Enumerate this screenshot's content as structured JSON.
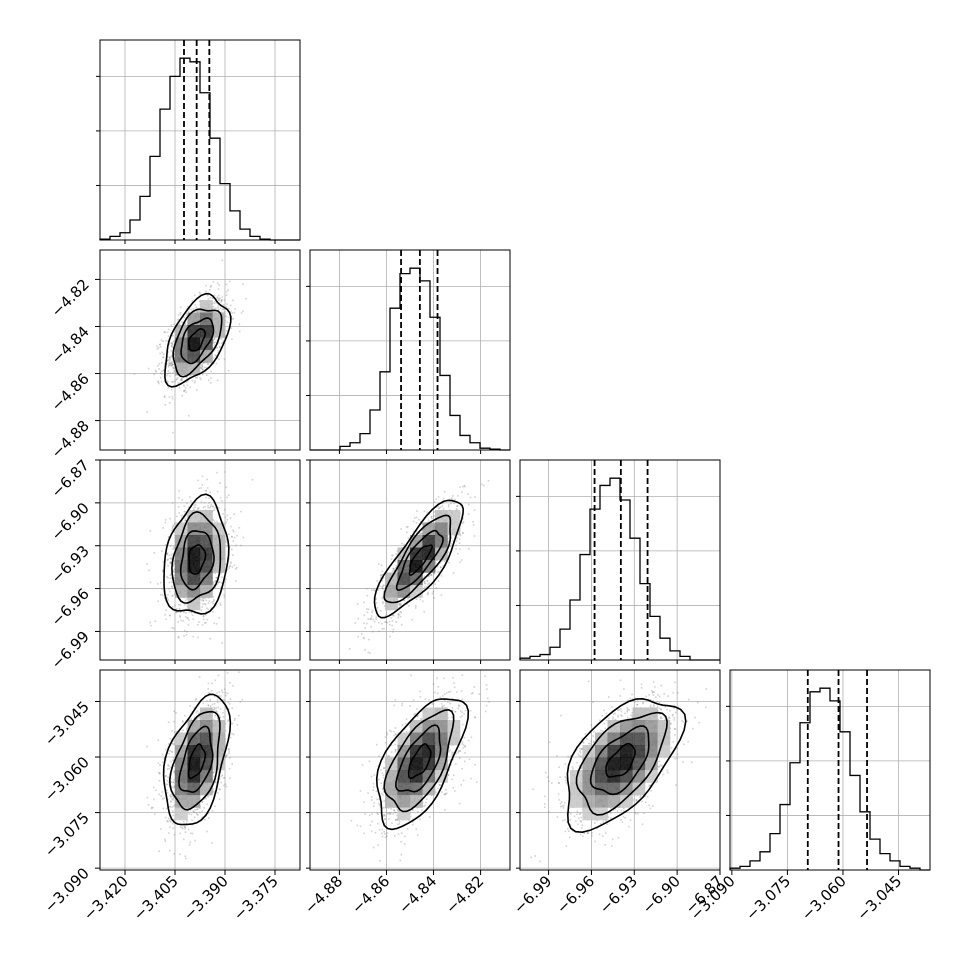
{
  "chart_data": {
    "type": "corner",
    "parameters": [
      {
        "range": [
          -3.4275,
          -3.3675
        ],
        "ticks": [
          -3.42,
          -3.405,
          -3.39,
          -3.375
        ],
        "tick_labels": [
          "−3.420",
          "−3.405",
          "−3.390",
          "−3.375"
        ],
        "quantiles": [
          -3.4023,
          -3.3985,
          -3.3947
        ],
        "hist": [
          0.005,
          0.02,
          0.04,
          0.11,
          0.24,
          0.46,
          0.72,
          0.9,
          1.0,
          0.98,
          0.81,
          0.56,
          0.31,
          0.16,
          0.06,
          0.02,
          0.005,
          0,
          0,
          0
        ]
      },
      {
        "range": [
          -4.8925,
          -4.8075
        ],
        "ticks": [
          -4.88,
          -4.86,
          -4.84,
          -4.82
        ],
        "tick_labels": [
          "−4.88",
          "−4.86",
          "−4.84",
          "−4.82"
        ],
        "quantiles": [
          -4.8538,
          -4.8458,
          -4.8383
        ],
        "hist": [
          0,
          0,
          0,
          0.02,
          0.04,
          0.09,
          0.22,
          0.43,
          0.78,
          0.97,
          1.0,
          0.93,
          0.73,
          0.41,
          0.19,
          0.08,
          0.04,
          0.01,
          0.005,
          0
        ]
      },
      {
        "range": [
          -7.01,
          -6.87
        ],
        "ticks": [
          -6.99,
          -6.96,
          -6.93,
          -6.9,
          -6.87
        ],
        "tick_labels": [
          "−6.99",
          "−6.96",
          "−6.93",
          "−6.90",
          "−6.87"
        ],
        "quantiles": [
          -6.9578,
          -6.9394,
          -6.9207
        ],
        "hist": [
          0.01,
          0.02,
          0.03,
          0.07,
          0.17,
          0.33,
          0.58,
          0.83,
          0.96,
          1.0,
          0.88,
          0.67,
          0.42,
          0.24,
          0.12,
          0.05,
          0.02,
          0,
          0,
          0
        ]
      },
      {
        "range": [
          -3.0905,
          -3.0365
        ],
        "ticks": [
          -3.09,
          -3.075,
          -3.06,
          -3.045
        ],
        "tick_labels": [
          "−3.090",
          "−3.075",
          "−3.060",
          "−3.045"
        ],
        "quantiles": [
          -3.0695,
          -3.0612,
          -3.0535
        ],
        "hist": [
          0.01,
          0.02,
          0.05,
          0.1,
          0.2,
          0.36,
          0.59,
          0.81,
          0.98,
          1.0,
          0.93,
          0.76,
          0.52,
          0.32,
          0.17,
          0.09,
          0.05,
          0.02,
          0.01,
          0
        ]
      }
    ],
    "pairs": [
      {
        "row": 1,
        "col": 0,
        "center": [
          -3.3985,
          -4.8458
        ],
        "sigma": [
          0.0044,
          0.0085
        ],
        "corr": 0.5
      },
      {
        "row": 2,
        "col": 0,
        "center": [
          -3.3985,
          -6.9394
        ],
        "sigma": [
          0.0044,
          0.0185
        ],
        "corr": 0.2
      },
      {
        "row": 2,
        "col": 1,
        "center": [
          -4.8458,
          -6.9394
        ],
        "sigma": [
          0.0085,
          0.0185
        ],
        "corr": 0.8
      },
      {
        "row": 3,
        "col": 0,
        "center": [
          -3.3985,
          -3.0612
        ],
        "sigma": [
          0.0044,
          0.008
        ],
        "corr": 0.45
      },
      {
        "row": 3,
        "col": 1,
        "center": [
          -4.8458,
          -3.0612
        ],
        "sigma": [
          0.0085,
          0.008
        ],
        "corr": 0.6
      },
      {
        "row": 3,
        "col": 2,
        "center": [
          -6.9394,
          -3.0612
        ],
        "sigma": [
          0.0185,
          0.008
        ],
        "corr": 0.55
      }
    ],
    "contour_levels_sigma": [
      0.5,
      1.0,
      1.5,
      2.0
    ],
    "grid": true,
    "colors": {
      "line": "#000000",
      "grid": "#b0b0b0",
      "scatter": "#808080"
    }
  }
}
